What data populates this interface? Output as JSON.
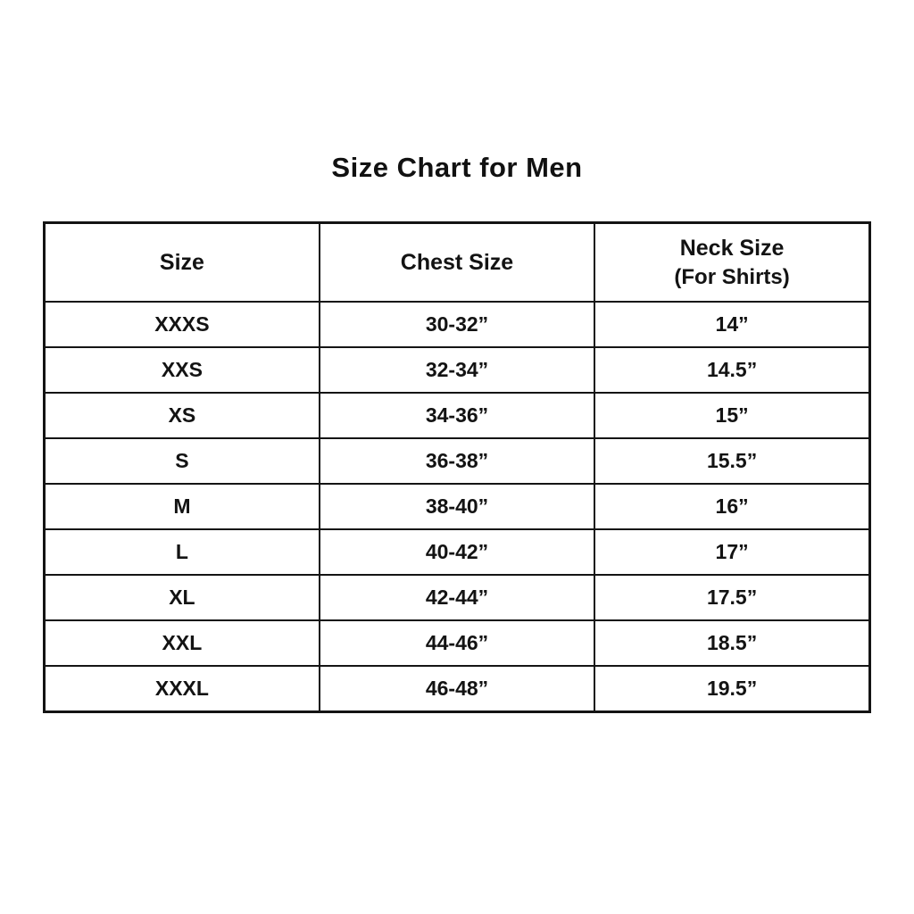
{
  "title": "Size Chart for Men",
  "table": {
    "headers": [
      {
        "line1": "Size",
        "line2": ""
      },
      {
        "line1": "Chest Size",
        "line2": ""
      },
      {
        "line1": "Neck Size",
        "line2": "(For Shirts)"
      }
    ],
    "rows": [
      {
        "size": "XXXS",
        "chest": "30-32”",
        "neck": "14”"
      },
      {
        "size": "XXS",
        "chest": "32-34”",
        "neck": "14.5”"
      },
      {
        "size": "XS",
        "chest": "34-36”",
        "neck": "15”"
      },
      {
        "size": "S",
        "chest": "36-38”",
        "neck": "15.5”"
      },
      {
        "size": "M",
        "chest": "38-40”",
        "neck": "16”"
      },
      {
        "size": "L",
        "chest": "40-42”",
        "neck": "17”"
      },
      {
        "size": "XL",
        "chest": "42-44”",
        "neck": "17.5”"
      },
      {
        "size": "XXL",
        "chest": "44-46”",
        "neck": "18.5”"
      },
      {
        "size": "XXXL",
        "chest": "46-48”",
        "neck": "19.5”"
      }
    ]
  },
  "colors": {
    "background": "#ffffff",
    "text": "#131313",
    "border": "#141414"
  },
  "chart_data": {
    "type": "table",
    "title": "Size Chart for Men",
    "columns": [
      "Size",
      "Chest Size",
      "Neck Size (For Shirts)"
    ],
    "rows": [
      [
        "XXXS",
        "30-32”",
        "14”"
      ],
      [
        "XXS",
        "32-34”",
        "14.5”"
      ],
      [
        "XS",
        "34-36”",
        "15”"
      ],
      [
        "S",
        "36-38”",
        "15.5”"
      ],
      [
        "M",
        "38-40”",
        "16”"
      ],
      [
        "L",
        "40-42”",
        "17”"
      ],
      [
        "XL",
        "42-44”",
        "17.5”"
      ],
      [
        "XXL",
        "44-46”",
        "18.5”"
      ],
      [
        "XXXL",
        "46-48”",
        "19.5”"
      ]
    ]
  }
}
